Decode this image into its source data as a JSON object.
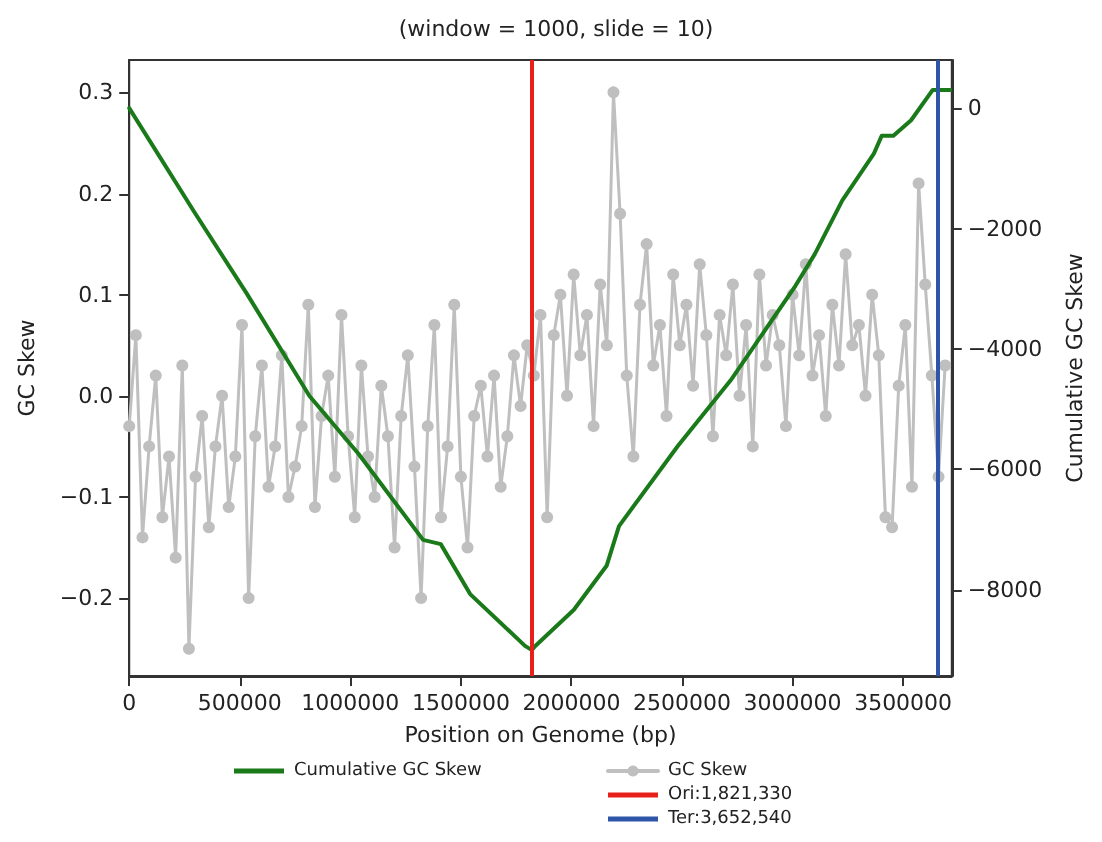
{
  "chart_data": {
    "type": "line",
    "title": "(window = 1000, slide = 10)",
    "xlabel": "Position on Genome (bp)",
    "ylabel": "GC Skew",
    "y2label": "Cumulative GC Skew",
    "xlim": [
      0,
      3720000
    ],
    "xticks": [
      0,
      500000,
      1000000,
      1500000,
      2000000,
      2500000,
      3000000,
      3500000
    ],
    "ylim": [
      -0.277,
      0.332
    ],
    "yticks": [
      {
        "value": -0.2,
        "label": "−0.2"
      },
      {
        "value": -0.1,
        "label": "−0.1"
      },
      {
        "value": 0,
        "label": "0.0"
      },
      {
        "value": 0.1,
        "label": "0.1"
      },
      {
        "value": 0.2,
        "label": "0.2"
      },
      {
        "value": 0.3,
        "label": "0.3"
      }
    ],
    "y2lim": [
      -9430,
      800
    ],
    "y2ticks": [
      {
        "value": -8000,
        "label": "−8000"
      },
      {
        "value": -6000,
        "label": "−6000"
      },
      {
        "value": -4000,
        "label": "−4000"
      },
      {
        "value": -2000,
        "label": "−2000"
      },
      0
    ],
    "grid": false,
    "legend": "bottom",
    "series": [
      {
        "name": "Cumulative GC Skew",
        "color": "#1a7a1a",
        "axis": "y2",
        "marker": "none",
        "x": [
          0,
          298600,
          531700,
          815200,
          1036700,
          1329100,
          1408900,
          1541800,
          1789900,
          1821330,
          1834000,
          2011000,
          2159000,
          2215000,
          2481000,
          2720000,
          3013000,
          3101000,
          3225000,
          3367000,
          3403000,
          3456000,
          3536000,
          3633000,
          3713000
        ],
        "values": [
          0,
          -1750,
          -3080,
          -4780,
          -5740,
          -7170,
          -7240,
          -8070,
          -8930,
          -9000,
          -8940,
          -8330,
          -7600,
          -6940,
          -5610,
          -4520,
          -2950,
          -2420,
          -1530,
          -760,
          -460,
          -460,
          -200,
          300,
          300
        ]
      },
      {
        "name": "GC Skew",
        "color": "#bfbfbf",
        "marker": "circle",
        "x": [
          0,
          30000,
          60000,
          90000,
          120000,
          150000,
          180000,
          210000,
          240000,
          270000,
          300000,
          330000,
          360000,
          390000,
          420000,
          450000,
          480000,
          510000,
          540000,
          570000,
          600000,
          630000,
          660000,
          690000,
          720000,
          750000,
          780000,
          810000,
          840000,
          870000,
          900000,
          930000,
          960000,
          990000,
          1020000,
          1050000,
          1080000,
          1110000,
          1140000,
          1170000,
          1200000,
          1230000,
          1260000,
          1290000,
          1320000,
          1350000,
          1380000,
          1410000,
          1440000,
          1470000,
          1500000,
          1530000,
          1560000,
          1590000,
          1620000,
          1650000,
          1680000,
          1710000,
          1740000,
          1770000,
          1800000,
          1830000,
          1860000,
          1890000,
          1920000,
          1950000,
          1980000,
          2010000,
          2040000,
          2070000,
          2100000,
          2130000,
          2160000,
          2190000,
          2220000,
          2250000,
          2280000,
          2310000,
          2340000,
          2370000,
          2400000,
          2430000,
          2460000,
          2490000,
          2520000,
          2550000,
          2580000,
          2610000,
          2640000,
          2670000,
          2700000,
          2730000,
          2760000,
          2790000,
          2820000,
          2850000,
          2880000,
          2910000,
          2940000,
          2970000,
          3000000,
          3030000,
          3060000,
          3090000,
          3120000,
          3150000,
          3180000,
          3210000,
          3240000,
          3270000,
          3300000,
          3330000,
          3360000,
          3390000,
          3420000,
          3450000,
          3480000,
          3510000,
          3540000,
          3570000,
          3600000,
          3630000,
          3660000,
          3690000
        ],
        "values": [
          -0.03,
          0.06,
          -0.14,
          -0.05,
          0.02,
          -0.12,
          -0.06,
          -0.16,
          0.03,
          -0.25,
          -0.08,
          -0.02,
          -0.13,
          -0.05,
          0.0,
          -0.11,
          -0.06,
          0.07,
          -0.2,
          -0.04,
          0.03,
          -0.09,
          -0.05,
          0.04,
          -0.1,
          -0.07,
          -0.03,
          0.09,
          -0.11,
          -0.02,
          0.02,
          -0.08,
          0.08,
          -0.04,
          -0.12,
          0.03,
          -0.06,
          -0.1,
          0.01,
          -0.04,
          -0.15,
          -0.02,
          0.04,
          -0.07,
          -0.2,
          -0.03,
          0.07,
          -0.12,
          -0.05,
          0.09,
          -0.08,
          -0.15,
          -0.02,
          0.01,
          -0.06,
          0.02,
          -0.09,
          -0.04,
          0.04,
          -0.01,
          0.05,
          0.02,
          0.08,
          -0.12,
          0.06,
          0.1,
          0.0,
          0.12,
          0.04,
          0.08,
          -0.03,
          0.11,
          0.05,
          0.3,
          0.18,
          0.02,
          -0.06,
          0.09,
          0.15,
          0.03,
          0.07,
          -0.02,
          0.12,
          0.05,
          0.09,
          0.01,
          0.13,
          0.06,
          -0.04,
          0.08,
          0.04,
          0.11,
          0.0,
          0.07,
          -0.05,
          0.12,
          0.03,
          0.08,
          0.05,
          -0.03,
          0.1,
          0.04,
          0.13,
          0.02,
          0.06,
          -0.02,
          0.09,
          0.03,
          0.14,
          0.05,
          0.07,
          0.0,
          0.1,
          0.04,
          -0.12,
          -0.13,
          0.01,
          0.07,
          -0.09,
          0.21,
          0.11,
          0.02,
          -0.08,
          0.03
        ]
      }
    ],
    "ref_lines": [
      {
        "axis": "x",
        "value": 1821330,
        "label": "Ori:1,821,330",
        "color": "#e8201c"
      },
      {
        "axis": "x",
        "value": 3652540,
        "label": "Ter:3,652,540",
        "color": "#2f55a8"
      }
    ]
  }
}
